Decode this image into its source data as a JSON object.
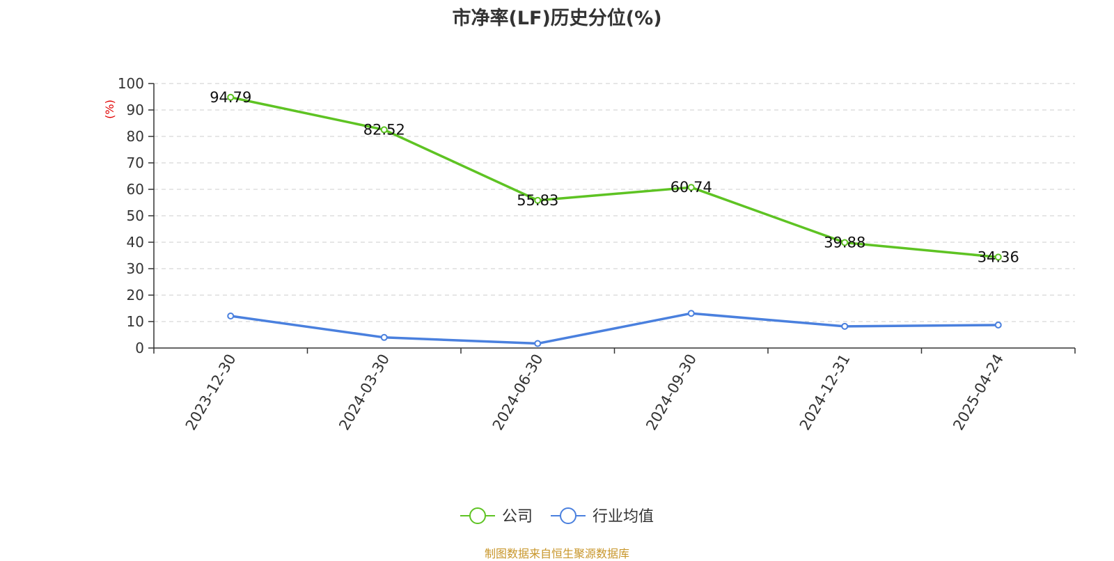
{
  "title": "市净率(LF)历史分位(%)",
  "source_note": "制图数据来自恒生聚源数据库",
  "colors": {
    "company": "#5ec323",
    "industry": "#4a80de",
    "unit_label": "#e00000",
    "source_note": "#c8962a"
  },
  "chart_data": {
    "type": "line",
    "title": "市净率(LF)历史分位(%)",
    "ylabel": "(%)",
    "xlabel": "",
    "categories": [
      "2023-12-30",
      "2024-03-30",
      "2024-06-30",
      "2024-09-30",
      "2024-12-31",
      "2025-04-24"
    ],
    "y_ticks": [
      "0",
      "10",
      "20",
      "30",
      "40",
      "50",
      "60",
      "70",
      "80",
      "90",
      "100"
    ],
    "ylim": [
      0,
      100
    ],
    "grid": true,
    "legend_position": "bottom-center",
    "series": [
      {
        "name": "公司",
        "values": [
          94.79,
          82.52,
          55.83,
          60.74,
          39.88,
          34.36
        ],
        "show_labels": true
      },
      {
        "name": "行业均值",
        "values": [
          12.1,
          4.0,
          1.7,
          13.1,
          8.2,
          8.7
        ],
        "show_labels": false
      }
    ],
    "data_labels": [
      "94.79",
      "82.52",
      "55.83",
      "60.74",
      "39.88",
      "34.36"
    ]
  }
}
